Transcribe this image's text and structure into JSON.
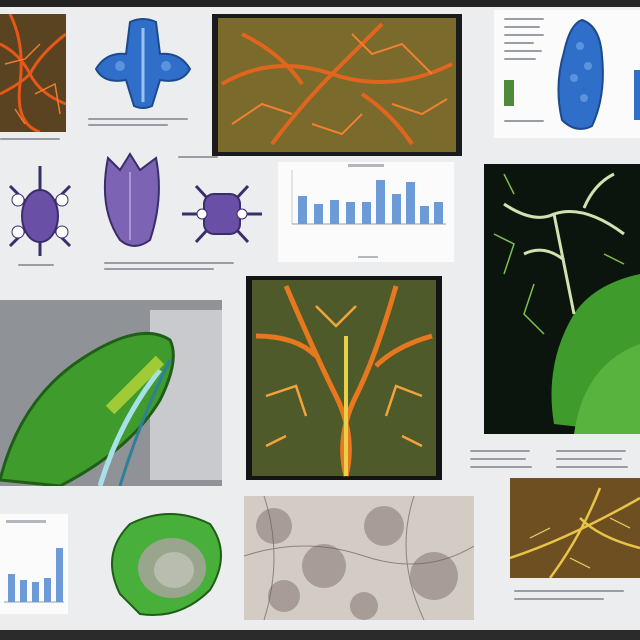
{
  "colors": {
    "background": "#ecedef",
    "vessel_orange": "#e0661e",
    "organ_blue": "#2f6fc9",
    "organ_purple": "#6a4fa6",
    "leaf_green": "#3f9b2c",
    "bar_blue": "#6c9bd8",
    "frame_dark": "#1c1c1c"
  },
  "icons": [
    "network-illustration",
    "organ-illustration",
    "bar-chart-thumbnail",
    "text-block"
  ]
}
